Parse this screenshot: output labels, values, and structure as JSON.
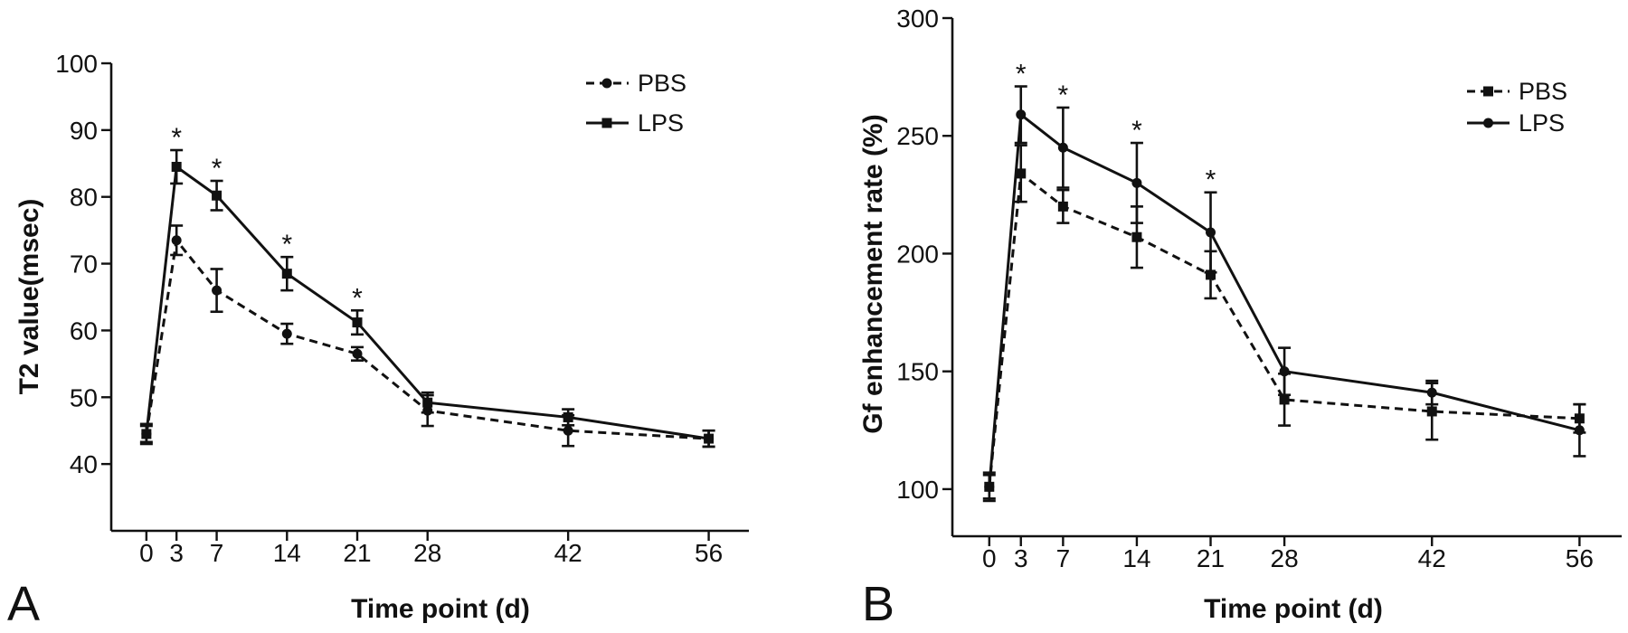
{
  "chart_data": [
    {
      "panel": "A",
      "type": "line",
      "ylabel": "T2 value(msec)",
      "xlabel": "Time point (d)",
      "x": [
        0,
        3,
        7,
        14,
        21,
        28,
        42,
        56
      ],
      "xticks": [
        "0",
        "3",
        "7",
        "14",
        "21",
        "28",
        "42",
        "56"
      ],
      "xlim": [
        -3.5,
        60
      ],
      "ylim": [
        30,
        100
      ],
      "yticks": [
        40,
        50,
        60,
        70,
        80,
        90,
        100
      ],
      "legend": {
        "position": "top-right"
      },
      "series": [
        {
          "name": "PBS",
          "style": "dashed",
          "marker": "circle",
          "values": [
            44.5,
            73.5,
            66,
            59.5,
            56.5,
            48,
            45,
            43.8
          ],
          "errors": [
            1.5,
            2.2,
            3.2,
            1.5,
            1,
            2.3,
            2.3,
            1.2
          ]
        },
        {
          "name": "LPS",
          "style": "solid",
          "marker": "square",
          "values": [
            44.5,
            84.5,
            80.2,
            68.5,
            61.2,
            49.2,
            47,
            43.8
          ],
          "errors": [
            1.2,
            2.5,
            2.2,
            2.5,
            1.8,
            1.5,
            1.2,
            1.2
          ]
        }
      ],
      "significance": [
        {
          "x": 3,
          "label": "*"
        },
        {
          "x": 7,
          "label": "*"
        },
        {
          "x": 14,
          "label": "*"
        },
        {
          "x": 21,
          "label": "*"
        }
      ]
    },
    {
      "panel": "B",
      "type": "line",
      "ylabel": "Gf enhancement rate (%)",
      "xlabel": "Time point (d)",
      "x": [
        0,
        3,
        7,
        14,
        21,
        28,
        42,
        56
      ],
      "xticks": [
        "0",
        "3",
        "7",
        "14",
        "21",
        "28",
        "42",
        "56"
      ],
      "xlim": [
        -3.5,
        60
      ],
      "ylim": [
        80,
        300
      ],
      "yticks": [
        100,
        150,
        200,
        250,
        300
      ],
      "legend": {
        "position": "top-right"
      },
      "series": [
        {
          "name": "PBS",
          "style": "dashed",
          "marker": "square",
          "values": [
            101,
            234,
            220,
            207,
            191,
            138,
            133,
            130
          ],
          "errors": [
            6,
            12,
            7,
            13,
            10,
            11,
            12,
            6
          ]
        },
        {
          "name": "LPS",
          "style": "solid",
          "marker": "circle",
          "values": [
            101,
            259,
            245,
            230,
            209,
            150,
            141,
            125
          ],
          "errors": [
            5,
            12,
            17,
            17,
            17,
            10,
            5,
            11
          ]
        }
      ],
      "significance": [
        {
          "x": 3,
          "label": "*"
        },
        {
          "x": 7,
          "label": "*"
        },
        {
          "x": 14,
          "label": "*"
        },
        {
          "x": 21,
          "label": "*"
        }
      ]
    }
  ]
}
